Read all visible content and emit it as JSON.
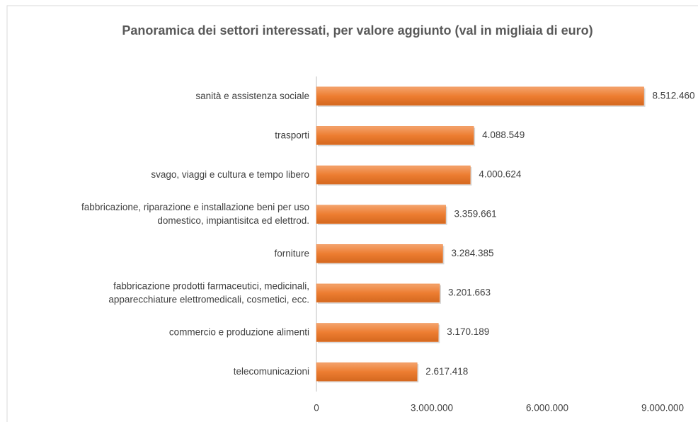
{
  "chart_data": {
    "type": "hbar",
    "title": "Panoramica dei settori interessati, per valore aggiunto (val in migliaia di euro)",
    "categories": [
      [
        "sanità e assistenza sociale"
      ],
      [
        "trasporti"
      ],
      [
        "svago, viaggi e cultura e tempo libero"
      ],
      [
        "fabbricazione, riparazione e installazione beni per uso",
        "domestico, impiantisitca ed elettrod."
      ],
      [
        "forniture"
      ],
      [
        "fabbricazione prodotti farmaceutici, medicinali,",
        "apparecchiature elettromedicali, cosmetici, ecc."
      ],
      [
        "commercio e produzione alimenti"
      ],
      [
        "telecomunicazioni"
      ]
    ],
    "values": [
      8512460,
      4088549,
      4000624,
      3359661,
      3284385,
      3201663,
      3170189,
      2617418
    ],
    "value_labels": [
      "8.512.460",
      "4.088.549",
      "4.000.624",
      "3.359.661",
      "3.284.385",
      "3.201.663",
      "3.170.189",
      "2.617.418"
    ],
    "color": "#ed7d31",
    "xlim": [
      0,
      9000000
    ],
    "xticks": [
      0,
      {
        "value": 3000000,
        "label": "3.000.000"
      },
      {
        "value": 6000000,
        "label": "6.000.000"
      },
      {
        "value": 9000000,
        "label": "9.000.000"
      }
    ],
    "grid": false
  }
}
